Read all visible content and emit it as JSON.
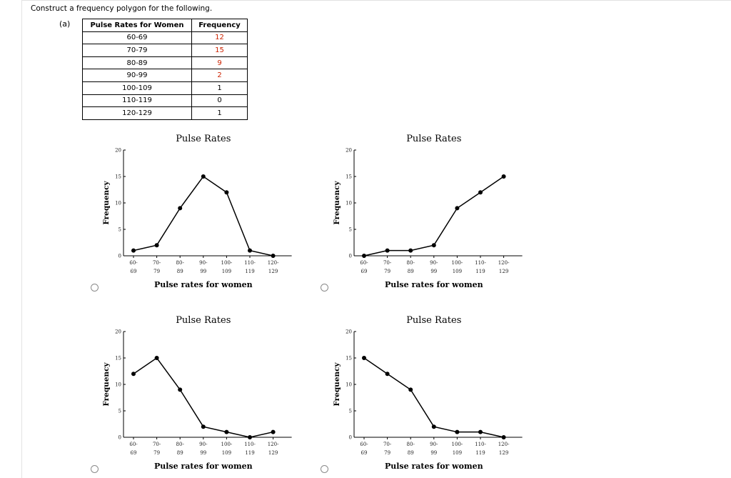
{
  "question": {
    "prompt": "Construct a frequency polygon for the following.",
    "part_label": "(a)"
  },
  "table": {
    "headers": [
      "Pulse Rates for Women",
      "Frequency"
    ],
    "rows": [
      {
        "range": "60-69",
        "freq": "12",
        "color": "#cc2200"
      },
      {
        "range": "70-79",
        "freq": "15",
        "color": "#cc2200"
      },
      {
        "range": "80-89",
        "freq": "9",
        "color": "#cc2200"
      },
      {
        "range": "90-99",
        "freq": "2",
        "color": "#cc2200"
      },
      {
        "range": "100-109",
        "freq": "1",
        "color": "#000000"
      },
      {
        "range": "110-119",
        "freq": "0",
        "color": "#000000"
      },
      {
        "range": "120-129",
        "freq": "1",
        "color": "#000000"
      }
    ]
  },
  "chart_data": [
    {
      "type": "line",
      "title": "Pulse Rates",
      "xlabel": "Pulse rates for women",
      "ylabel": "Frequency",
      "categories": [
        [
          "60-",
          "69"
        ],
        [
          "70-",
          "79"
        ],
        [
          "80-",
          "89"
        ],
        [
          "90-",
          "99"
        ],
        [
          "100-",
          "109"
        ],
        [
          "110-",
          "119"
        ],
        [
          "120-",
          "129"
        ]
      ],
      "values": [
        1,
        2,
        9,
        15,
        12,
        1,
        0
      ],
      "ylim": [
        0,
        20
      ],
      "yticks": [
        0,
        5,
        10,
        15,
        20
      ]
    },
    {
      "type": "line",
      "title": "Pulse Rates",
      "xlabel": "Pulse rates for women",
      "ylabel": "Frequency",
      "categories": [
        [
          "60-",
          "69"
        ],
        [
          "70-",
          "79"
        ],
        [
          "80-",
          "89"
        ],
        [
          "90-",
          "99"
        ],
        [
          "100-",
          "109"
        ],
        [
          "110-",
          "119"
        ],
        [
          "120-",
          "129"
        ]
      ],
      "values": [
        0,
        1,
        1,
        2,
        9,
        12,
        15
      ],
      "ylim": [
        0,
        20
      ],
      "yticks": [
        0,
        5,
        10,
        15,
        20
      ]
    },
    {
      "type": "line",
      "title": "Pulse Rates",
      "xlabel": "Pulse rates for women",
      "ylabel": "Frequency",
      "categories": [
        [
          "60-",
          "69"
        ],
        [
          "70-",
          "79"
        ],
        [
          "80-",
          "89"
        ],
        [
          "90-",
          "99"
        ],
        [
          "100-",
          "109"
        ],
        [
          "110-",
          "119"
        ],
        [
          "120-",
          "129"
        ]
      ],
      "values": [
        12,
        15,
        9,
        2,
        1,
        0,
        1
      ],
      "ylim": [
        0,
        20
      ],
      "yticks": [
        0,
        5,
        10,
        15,
        20
      ]
    },
    {
      "type": "line",
      "title": "Pulse Rates",
      "xlabel": "Pulse rates for women",
      "ylabel": "Frequency",
      "categories": [
        [
          "60-",
          "69"
        ],
        [
          "70-",
          "79"
        ],
        [
          "80-",
          "89"
        ],
        [
          "90-",
          "99"
        ],
        [
          "100-",
          "109"
        ],
        [
          "110-",
          "119"
        ],
        [
          "120-",
          "129"
        ]
      ],
      "values": [
        15,
        12,
        9,
        2,
        1,
        1,
        0
      ],
      "ylim": [
        0,
        20
      ],
      "yticks": [
        0,
        5,
        10,
        15,
        20
      ]
    }
  ]
}
